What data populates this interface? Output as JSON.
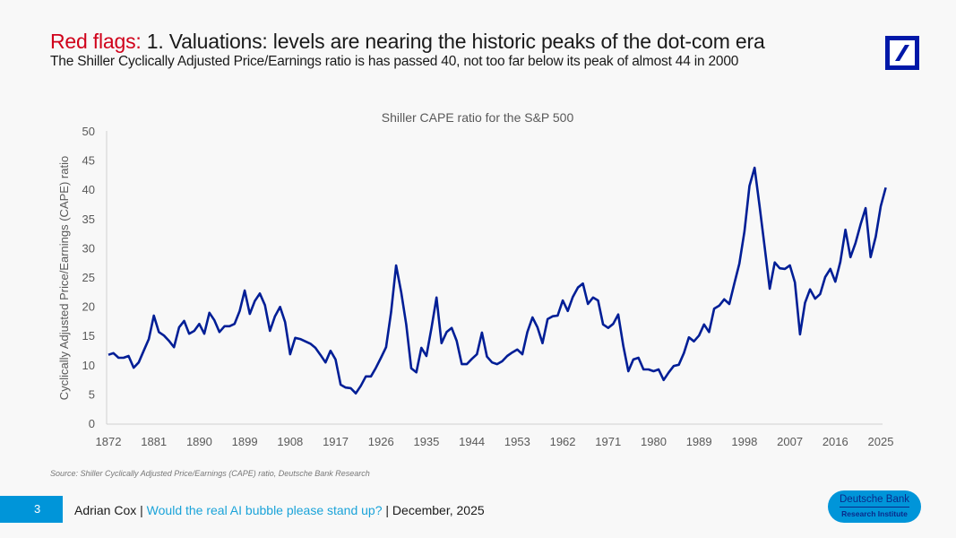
{
  "header": {
    "title_prefix": "Red flags:",
    "title_main": " 1. Valuations: levels are nearing the historic peaks of the dot-com era",
    "subtitle": "The Shiller Cyclically Adjusted Price/Earnings ratio is has passed 40, not too far below its peak of almost 44 in 2000",
    "logo_icon": "deutsche-bank-slash-logo"
  },
  "colors": {
    "accent_red": "#d0021b",
    "line_navy": "#001e96",
    "brand_blue": "#0018a8",
    "footer_cyan": "#0095d9"
  },
  "chart_data": {
    "type": "line",
    "title": "Shiller CAPE ratio for the S&P 500",
    "xlabel": "",
    "ylabel": "Cyclically Adjusted Price/Earnings (CAPE) ratio",
    "ylim": [
      0,
      50
    ],
    "xlim": [
      1872,
      2025
    ],
    "yticks": [
      0,
      5,
      10,
      15,
      20,
      25,
      30,
      35,
      40,
      45,
      50
    ],
    "xticks": [
      1872,
      1881,
      1890,
      1899,
      1908,
      1917,
      1926,
      1935,
      1944,
      1953,
      1962,
      1971,
      1980,
      1989,
      1998,
      2007,
      2016,
      2025
    ],
    "grid": false,
    "legend": "none",
    "series": [
      {
        "name": "Shiller CAPE",
        "x": [
          1872,
          1873,
          1874,
          1875,
          1876,
          1877,
          1878,
          1879,
          1880,
          1881,
          1882,
          1883,
          1884,
          1885,
          1886,
          1887,
          1888,
          1889,
          1890,
          1891,
          1892,
          1893,
          1894,
          1895,
          1896,
          1897,
          1898,
          1899,
          1900,
          1901,
          1902,
          1903,
          1904,
          1905,
          1906,
          1907,
          1908,
          1909,
          1910,
          1911,
          1912,
          1913,
          1914,
          1915,
          1916,
          1917,
          1918,
          1919,
          1920,
          1921,
          1922,
          1923,
          1924,
          1925,
          1926,
          1927,
          1928,
          1929,
          1930,
          1931,
          1932,
          1933,
          1934,
          1935,
          1936,
          1937,
          1938,
          1939,
          1940,
          1941,
          1942,
          1943,
          1944,
          1945,
          1946,
          1947,
          1948,
          1949,
          1950,
          1951,
          1952,
          1953,
          1954,
          1955,
          1956,
          1957,
          1958,
          1959,
          1960,
          1961,
          1962,
          1963,
          1964,
          1965,
          1966,
          1967,
          1968,
          1969,
          1970,
          1971,
          1972,
          1973,
          1974,
          1975,
          1976,
          1977,
          1978,
          1979,
          1980,
          1981,
          1982,
          1983,
          1984,
          1985,
          1986,
          1987,
          1988,
          1989,
          1990,
          1991,
          1992,
          1993,
          1994,
          1995,
          1996,
          1997,
          1998,
          1999,
          2000,
          2001,
          2002,
          2003,
          2004,
          2005,
          2006,
          2007,
          2008,
          2009,
          2010,
          2011,
          2012,
          2013,
          2014,
          2015,
          2016,
          2017,
          2018,
          2019,
          2020,
          2021,
          2022,
          2023,
          2024,
          2025,
          2026
        ],
        "values": [
          11.7,
          12.0,
          11.2,
          11.2,
          11.5,
          9.5,
          10.4,
          12.4,
          14.4,
          18.4,
          15.6,
          15.0,
          14.1,
          13.0,
          16.4,
          17.5,
          15.3,
          15.8,
          17.0,
          15.3,
          18.9,
          17.6,
          15.6,
          16.6,
          16.6,
          17.0,
          19.2,
          22.7,
          18.7,
          20.9,
          22.2,
          20.2,
          15.8,
          18.3,
          19.9,
          17.3,
          11.8,
          14.6,
          14.4,
          14.0,
          13.6,
          12.9,
          11.7,
          10.4,
          12.4,
          10.9,
          6.6,
          6.1,
          6.0,
          5.1,
          6.4,
          8.0,
          8.0,
          9.5,
          11.2,
          13.0,
          19.0,
          27.0,
          22.4,
          16.9,
          9.4,
          8.7,
          12.9,
          11.5,
          16.3,
          21.5,
          13.7,
          15.6,
          16.3,
          14.1,
          10.1,
          10.1,
          11.0,
          11.8,
          15.5,
          11.4,
          10.4,
          10.1,
          10.6,
          11.5,
          12.1,
          12.6,
          11.8,
          15.6,
          18.1,
          16.4,
          13.7,
          17.8,
          18.3,
          18.4,
          21.0,
          19.2,
          21.6,
          23.2,
          23.9,
          20.4,
          21.5,
          21.0,
          16.9,
          16.3,
          17.0,
          18.6,
          13.2,
          8.9,
          10.9,
          11.2,
          9.2,
          9.2,
          8.9,
          9.2,
          7.4,
          8.7,
          9.8,
          10.0,
          12.0,
          14.7,
          14.0,
          15.0,
          16.9,
          15.6,
          19.6,
          20.1,
          21.2,
          20.4,
          23.9,
          27.3,
          32.8,
          40.6,
          43.7,
          37.1,
          30.2,
          23.0,
          27.5,
          26.5,
          26.4,
          27.0,
          24.1,
          15.2,
          20.6,
          22.9,
          21.3,
          22.1,
          25.0,
          26.4,
          24.2,
          27.6,
          33.1,
          28.4,
          30.8,
          34.0,
          36.8,
          28.4,
          31.9,
          37.1,
          40.3
        ]
      }
    ]
  },
  "source": "Source: Shiller Cyclically Adjusted Price/Earnings (CAPE) ratio, Deutsche Bank Research",
  "footer": {
    "page_number": "3",
    "author": "Adrian Cox | ",
    "report_link": "Would the real AI bubble please stand up?",
    "date": " | December, 2025",
    "badge_line1": "Deutsche Bank",
    "badge_line2": "Research Institute"
  }
}
